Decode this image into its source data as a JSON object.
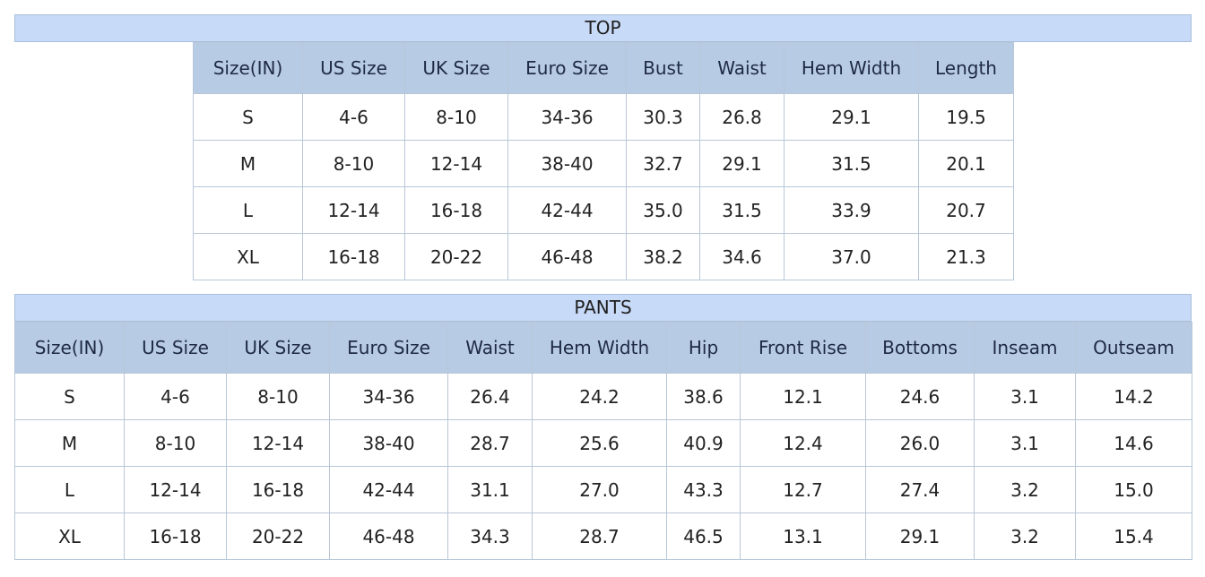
{
  "top": {
    "title": "TOP",
    "headers": [
      "Size(IN)",
      "US Size",
      "UK Size",
      "Euro Size",
      "Bust",
      "Waist",
      "Hem Width",
      "Length"
    ],
    "rows": [
      [
        "S",
        "4-6",
        "8-10",
        "34-36",
        "30.3",
        "26.8",
        "29.1",
        "19.5"
      ],
      [
        "M",
        "8-10",
        "12-14",
        "38-40",
        "32.7",
        "29.1",
        "31.5",
        "20.1"
      ],
      [
        "L",
        "12-14",
        "16-18",
        "42-44",
        "35.0",
        "31.5",
        "33.9",
        "20.7"
      ],
      [
        "XL",
        "16-18",
        "20-22",
        "46-48",
        "38.2",
        "34.6",
        "37.0",
        "21.3"
      ]
    ]
  },
  "pants": {
    "title": "PANTS",
    "headers": [
      "Size(IN)",
      "US Size",
      "UK Size",
      "Euro Size",
      "Waist",
      "Hem Width",
      "Hip",
      "Front Rise",
      "Bottoms",
      "Inseam",
      "Outseam"
    ],
    "rows": [
      [
        "S",
        "4-6",
        "8-10",
        "34-36",
        "26.4",
        "24.2",
        "38.6",
        "12.1",
        "24.6",
        "3.1",
        "14.2"
      ],
      [
        "M",
        "8-10",
        "12-14",
        "38-40",
        "28.7",
        "25.6",
        "40.9",
        "12.4",
        "26.0",
        "3.1",
        "14.6"
      ],
      [
        "L",
        "12-14",
        "16-18",
        "42-44",
        "31.1",
        "27.0",
        "43.3",
        "12.7",
        "27.4",
        "3.2",
        "15.0"
      ],
      [
        "XL",
        "16-18",
        "20-22",
        "46-48",
        "34.3",
        "28.7",
        "46.5",
        "13.1",
        "29.1",
        "3.2",
        "15.4"
      ]
    ]
  },
  "colors": {
    "title_bar": "#c7daf7",
    "header_row": "#b8cbe4",
    "grid_line": "#b8c7d8"
  }
}
